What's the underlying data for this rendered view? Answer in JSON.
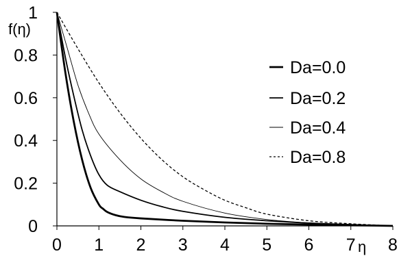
{
  "chart_data": {
    "type": "line",
    "title": "",
    "xlabel": "η",
    "ylabel": "f(η)",
    "xlim": [
      0,
      8
    ],
    "ylim": [
      0,
      1
    ],
    "x_ticks": [
      "0",
      "1",
      "2",
      "3",
      "4",
      "5",
      "6",
      "7",
      "8"
    ],
    "y_ticks": [
      "0",
      "0.2",
      "0.4",
      "0.6",
      "0.8",
      "1"
    ],
    "grid": false,
    "legend_position": "right",
    "series": [
      {
        "name": "Da=0.0",
        "style": "solid-thick",
        "x": [
          0,
          0.2,
          0.4,
          0.6,
          0.8,
          1.0,
          1.1,
          1.2,
          1.4,
          1.6,
          2.0,
          3.0,
          4.0,
          5.0,
          6.0,
          7.0,
          8.0
        ],
        "y": [
          1.0,
          0.72,
          0.49,
          0.31,
          0.18,
          0.1,
          0.08,
          0.065,
          0.05,
          0.042,
          0.035,
          0.024,
          0.016,
          0.01,
          0.006,
          0.003,
          0.0
        ]
      },
      {
        "name": "Da=0.2",
        "style": "solid-medium",
        "x": [
          0,
          0.2,
          0.4,
          0.6,
          0.8,
          1.0,
          1.2,
          1.5,
          2.0,
          2.5,
          3.0,
          4.0,
          5.0,
          6.0,
          7.0,
          8.0
        ],
        "y": [
          1.0,
          0.79,
          0.61,
          0.45,
          0.33,
          0.24,
          0.19,
          0.16,
          0.12,
          0.09,
          0.068,
          0.04,
          0.024,
          0.013,
          0.006,
          0.0
        ]
      },
      {
        "name": "Da=0.4",
        "style": "solid-thin",
        "x": [
          0,
          0.25,
          0.5,
          0.75,
          1.0,
          1.5,
          2.0,
          2.5,
          3.0,
          4.0,
          5.0,
          6.0,
          7.0,
          8.0
        ],
        "y": [
          1.0,
          0.83,
          0.66,
          0.53,
          0.43,
          0.31,
          0.22,
          0.16,
          0.115,
          0.06,
          0.03,
          0.014,
          0.006,
          0.0
        ]
      },
      {
        "name": "Da=0.8",
        "style": "dashed",
        "x": [
          0,
          0.5,
          1.0,
          1.5,
          2.0,
          2.5,
          3.0,
          3.5,
          4.0,
          4.5,
          5.0,
          6.0,
          7.0,
          8.0
        ],
        "y": [
          1.0,
          0.83,
          0.67,
          0.53,
          0.41,
          0.31,
          0.23,
          0.17,
          0.12,
          0.085,
          0.055,
          0.024,
          0.01,
          0.0
        ]
      }
    ]
  }
}
